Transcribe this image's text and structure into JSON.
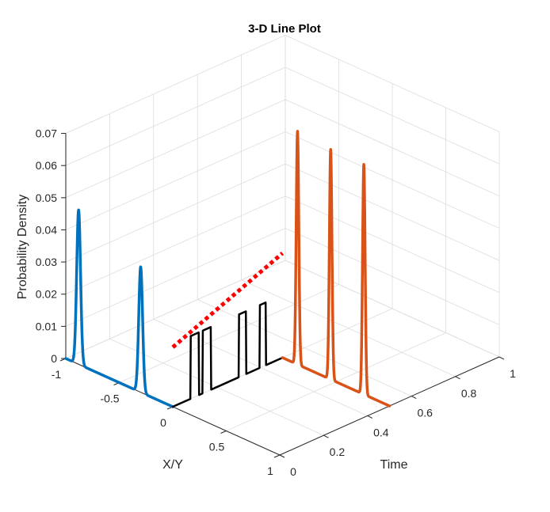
{
  "chart_data": {
    "type": "line",
    "projection": "3d",
    "title": "3-D Line Plot",
    "xlabel": "X/Y",
    "ylabel": "Time",
    "zlabel": "Probability Density",
    "xlim": [
      -1,
      1
    ],
    "ylim": [
      0,
      1
    ],
    "zlim": [
      0,
      0.07
    ],
    "xticks": [
      "-1",
      "-0.5",
      "0",
      "0.5",
      "1"
    ],
    "yticks": [
      "0",
      "0.2",
      "0.4",
      "0.6",
      "0.8",
      "1"
    ],
    "zticks": [
      "0",
      "0.01",
      "0.02",
      "0.03",
      "0.04",
      "0.05",
      "0.06",
      "0.07"
    ],
    "grid": true,
    "series": [
      {
        "color": "#0072BD",
        "linewidth": 3.5,
        "style": "solid",
        "time": 0,
        "x_range": [
          -1,
          0
        ],
        "peaks": [
          {
            "x": -0.88,
            "height": 0.048,
            "width": 0.018
          },
          {
            "x": -0.3,
            "height": 0.039,
            "width": 0.018
          }
        ]
      },
      {
        "color": "#000000",
        "linewidth": 2.5,
        "style": "solid",
        "x_fixed": 0,
        "time_range": [
          0,
          0.5
        ],
        "steps": [
          {
            "t_on": 0.08,
            "t_off": 0.12,
            "height": 0.0195
          },
          {
            "t_on": 0.135,
            "t_off": 0.175,
            "height": 0.0195
          },
          {
            "t_on": 0.3,
            "t_off": 0.335,
            "height": 0.0195
          },
          {
            "t_on": 0.395,
            "t_off": 0.425,
            "height": 0.0195
          }
        ]
      },
      {
        "color": "#D95319",
        "linewidth": 3.5,
        "style": "solid",
        "time": 0.5,
        "x_range": [
          0,
          1
        ],
        "peaks": [
          {
            "x": 0.14,
            "height": 0.0725,
            "width": 0.012
          },
          {
            "x": 0.45,
            "height": 0.0715,
            "width": 0.012
          },
          {
            "x": 0.76,
            "height": 0.0715,
            "width": 0.012
          }
        ]
      },
      {
        "color": "#FF0000",
        "linewidth": 5,
        "style": "dotted",
        "x_fixed": 0,
        "time_range": [
          0,
          0.5
        ],
        "z_range": [
          0.0185,
          0.0325
        ]
      }
    ]
  }
}
